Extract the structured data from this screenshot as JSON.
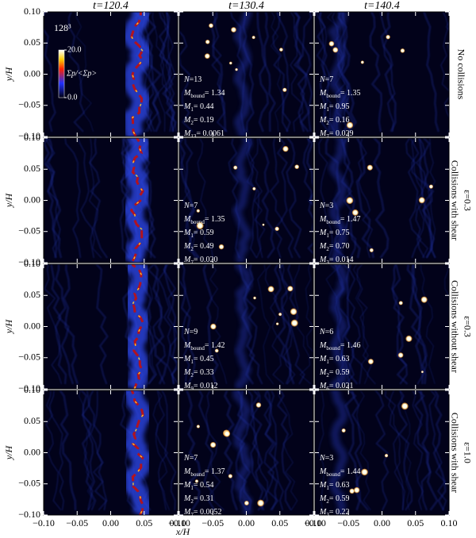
{
  "chart_data": {
    "type": "heatmap",
    "title": "128³",
    "column_titles": [
      "t=120.4",
      "t=130.4",
      "t=140.4"
    ],
    "row_labels": [
      [
        "No collisions"
      ],
      [
        "Collisions with shear",
        "ε=0.3"
      ],
      [
        "Collisions without shear",
        "ε=0.3"
      ],
      [
        "Collisions with shear",
        "ε=1.0"
      ]
    ],
    "x_label": "x/H",
    "y_label": "y/H",
    "xlim": [
      -0.1,
      0.1
    ],
    "ylim": [
      -0.1,
      0.1
    ],
    "xticks": [
      {
        "value": -0.1,
        "label": "−0.10"
      },
      {
        "value": -0.05,
        "label": "−0.05"
      },
      {
        "value": 0,
        "label": "0.00"
      },
      {
        "value": 0.05,
        "label": "0.05"
      },
      {
        "value": 0.1,
        "label": "0.10"
      }
    ],
    "yticks": [
      {
        "value": 0.1,
        "label": "0.10"
      },
      {
        "value": 0.05,
        "label": "0.05"
      },
      {
        "value": 0,
        "label": "0.00"
      },
      {
        "value": -0.05,
        "label": "−0.05"
      },
      {
        "value": -0.1,
        "label": "−0.10"
      }
    ],
    "colorbar_label": "Σp/<Σp>",
    "clim": [
      0,
      20
    ],
    "cticks": [
      {
        "value": 0,
        "label": "0.0"
      },
      {
        "value": 20,
        "label": "20.0"
      }
    ],
    "annotations": [
      [
        [],
        [
          {
            "name": "N",
            "text": "=13"
          },
          {
            "name": "M",
            "sub": "bound",
            "text": "= 1.34"
          },
          {
            "name": "M",
            "sub": "1",
            "text": "= 0.44"
          },
          {
            "name": "M",
            "sub": "2",
            "text": "= 0.19"
          },
          {
            "name": "M",
            "sub": "13",
            "text": "= 0.0061"
          }
        ],
        [
          {
            "name": "N",
            "text": "=7"
          },
          {
            "name": "M",
            "sub": "bound",
            "text": "= 1.35"
          },
          {
            "name": "M",
            "sub": "1",
            "text": "= 0.95"
          },
          {
            "name": "M",
            "sub": "2",
            "text": "= 0.16"
          },
          {
            "name": "M",
            "sub": "7",
            "text": "= 0.029"
          }
        ]
      ],
      [
        [],
        [
          {
            "name": "N",
            "text": "=7"
          },
          {
            "name": "M",
            "sub": "bound",
            "text": "= 1.35"
          },
          {
            "name": "M",
            "sub": "1",
            "text": "= 0.59"
          },
          {
            "name": "M",
            "sub": "2",
            "text": "= 0.49"
          },
          {
            "name": "M",
            "sub": "7",
            "text": "= 0.020"
          }
        ],
        [
          {
            "name": "N",
            "text": "=3"
          },
          {
            "name": "M",
            "sub": "bound",
            "text": "= 1.47"
          },
          {
            "name": "M",
            "sub": "1",
            "text": "= 0.75"
          },
          {
            "name": "M",
            "sub": "2",
            "text": "= 0.70"
          },
          {
            "name": "M",
            "sub": "3",
            "text": "= 0.014"
          }
        ]
      ],
      [
        [],
        [
          {
            "name": "N",
            "text": "=9"
          },
          {
            "name": "M",
            "sub": "bound",
            "text": "= 1.42"
          },
          {
            "name": "M",
            "sub": "1",
            "text": "= 0.45"
          },
          {
            "name": "M",
            "sub": "2",
            "text": "= 0.33"
          },
          {
            "name": "M",
            "sub": "9",
            "text": "= 0.012"
          }
        ],
        [
          {
            "name": "N",
            "text": "=6"
          },
          {
            "name": "M",
            "sub": "bound",
            "text": "= 1.46"
          },
          {
            "name": "M",
            "sub": "1",
            "text": "= 0.63"
          },
          {
            "name": "M",
            "sub": "2",
            "text": "= 0.59"
          },
          {
            "name": "M",
            "sub": "6",
            "text": "= 0.021"
          }
        ]
      ],
      [
        [],
        [
          {
            "name": "N",
            "text": "=7"
          },
          {
            "name": "M",
            "sub": "bound",
            "text": "= 1.37"
          },
          {
            "name": "M",
            "sub": "1",
            "text": "= 0.54"
          },
          {
            "name": "M",
            "sub": "2",
            "text": "= 0.31"
          },
          {
            "name": "M",
            "sub": "7",
            "text": "= 0.0052"
          }
        ],
        [
          {
            "name": "N",
            "text": "=3"
          },
          {
            "name": "M",
            "sub": "bound",
            "text": "= 1.44"
          },
          {
            "name": "M",
            "sub": "1",
            "text": "= 0.63"
          },
          {
            "name": "M",
            "sub": "2",
            "text": "= 0.59"
          },
          {
            "name": "M",
            "sub": "3",
            "text": "= 0.22"
          }
        ]
      ]
    ]
  }
}
